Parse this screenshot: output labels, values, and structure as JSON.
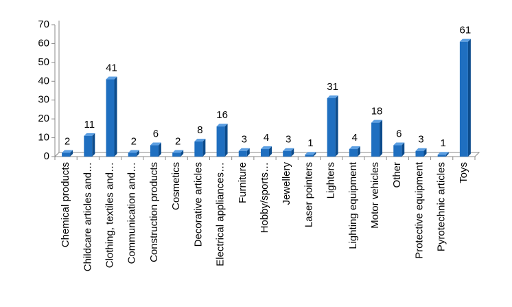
{
  "chart_data": {
    "type": "bar",
    "categories": [
      "Chemical products",
      "Childcare articles and…",
      "Clothing, textiles and…",
      "Communication and…",
      "Construction products",
      "Cosmetics",
      "Decorative articles",
      "Electrical appliances…",
      "Furniture",
      "Hobby/sports…",
      "Jewellery",
      "Laser pointers",
      "Lighters",
      "Lighting equipment",
      "Motor vehicles",
      "Other",
      "Protective equipment",
      "Pyrotechnic articles",
      "Toys"
    ],
    "values": [
      2,
      11,
      41,
      2,
      6,
      2,
      8,
      16,
      3,
      4,
      3,
      1,
      31,
      4,
      18,
      6,
      3,
      1,
      61
    ],
    "color": "#1f6fc0",
    "ylim": [
      0,
      70
    ],
    "yticks": [
      0,
      10,
      20,
      30,
      40,
      50,
      60,
      70
    ],
    "grid": false
  }
}
